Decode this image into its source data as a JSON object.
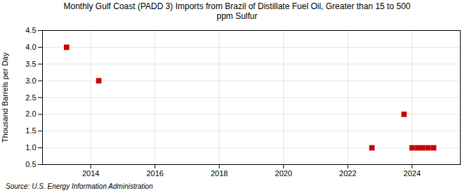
{
  "chart_data": {
    "type": "scatter",
    "title": "Monthly Gulf Coast (PADD 3) Imports from Brazil of Distillate Fuel Oil, Greater than 15 to 500\nppm Sulfur",
    "ylabel": "Thousand Barrels per Day",
    "source": "Source: U.S. Energy Information Administration",
    "x": [
      2013.25,
      2014.25,
      2022.75,
      2023.75,
      2024.0,
      2024.17,
      2024.33,
      2024.5,
      2024.67
    ],
    "values": [
      4.0,
      3.0,
      1.0,
      2.0,
      1.0,
      1.0,
      1.0,
      1.0,
      1.0
    ],
    "color": "#cc0000",
    "marker": "square",
    "xlim": [
      2012.5,
      2025.5
    ],
    "xticks": [
      2014,
      2016,
      2018,
      2020,
      2022,
      2024
    ],
    "ylim": [
      0.5,
      4.5
    ],
    "yticks": [
      0.5,
      {
        "value": 1.0,
        "label": "1.0"
      },
      1.5,
      {
        "value": 2.0,
        "label": "2.0"
      },
      2.5,
      {
        "value": 3.0,
        "label": "3.0"
      },
      3.5,
      {
        "value": 4.0,
        "label": "4.0"
      },
      4.5
    ],
    "grid": true
  }
}
